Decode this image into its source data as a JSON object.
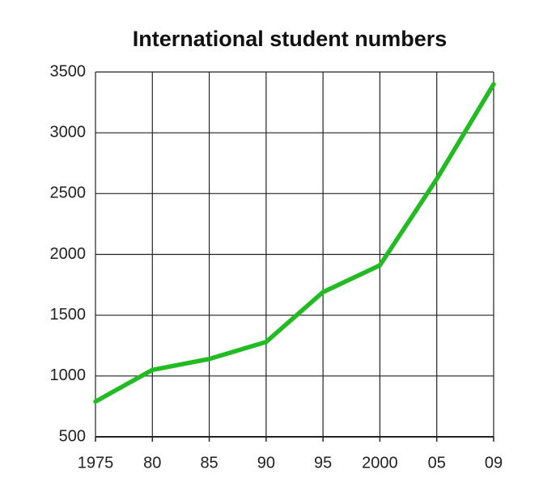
{
  "chart_data": {
    "type": "line",
    "title": "International student numbers",
    "categories": [
      "1975",
      "80",
      "85",
      "90",
      "95",
      "2000",
      "05",
      "09"
    ],
    "values": [
      790,
      1050,
      1140,
      1280,
      1690,
      1910,
      2620,
      3400
    ],
    "color": "#22bb22",
    "ylim": [
      500,
      3500
    ],
    "yticks": [
      500,
      1000,
      1500,
      2000,
      2500,
      3000,
      3500
    ],
    "grid": true
  }
}
